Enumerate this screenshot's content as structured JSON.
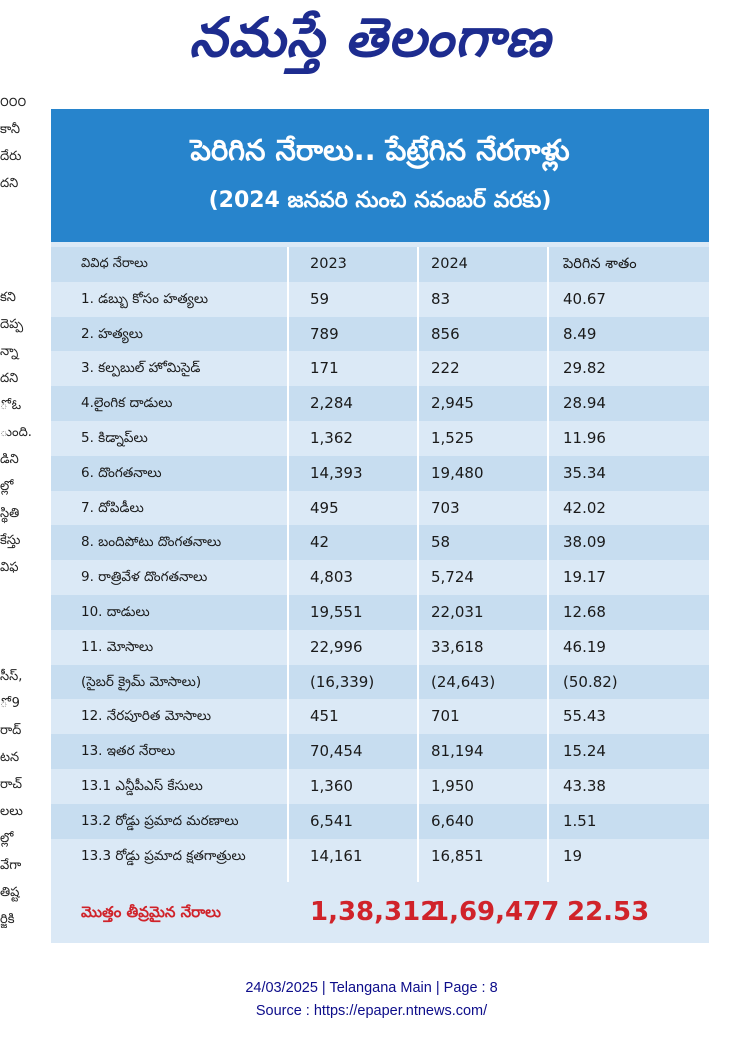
{
  "masthead": "నమస్తే తెలంగాణ",
  "edge_text": [
    "౦౦౦",
    "కానీ",
    "దేరు",
    "దని",
    "కని",
    "దెప్ప",
    "న్నా",
    "దని",
    "ో ఓ",
    "ుంది.",
    "డిని",
    "ల్లో",
    "స్థితి",
    "కేస్తు",
    "విఫ",
    "సీస్,",
    "ో 9",
    "రాద్",
    "టన",
    "రాచ్",
    "లలు",
    "ల్లో",
    "వేగా",
    "తిష్ట",
    "ర్జికి"
  ],
  "banner": {
    "title": "పెరిగిన నేరాలు.. పేట్రేగిన నేరగాళ్లు",
    "subtitle": "(2024 జనవరి నుంచి నవంబర్ వరకు)"
  },
  "table": {
    "headers": [
      "వివిధ నేరాలు",
      "2023",
      "2024",
      "పెరిగిన శాతం"
    ],
    "rows": [
      [
        "1. డబ్బు కోసం హత్యలు",
        "59",
        "83",
        "40.67"
      ],
      [
        "2. హత్యలు",
        "789",
        "856",
        "8.49"
      ],
      [
        "3. కల్పబుల్ హోమిసైడ్",
        "171",
        "222",
        "29.82"
      ],
      [
        "4.లైంగిక దాడులు",
        "2,284",
        "2,945",
        "28.94"
      ],
      [
        "5. కిడ్నాప్‌లు",
        "1,362",
        "1,525",
        "11.96"
      ],
      [
        "6. దొంగతనాలు",
        "14,393",
        "19,480",
        "35.34"
      ],
      [
        "7. దోపిడీలు",
        "495",
        "703",
        "42.02"
      ],
      [
        "8. బందిపోటు దొంగతనాలు",
        "42",
        "58",
        "38.09"
      ],
      [
        "9. రాత్రివేళ దొంగతనాలు",
        "4,803",
        "5,724",
        "19.17"
      ],
      [
        "10. దాడులు",
        "19,551",
        "22,031",
        "12.68"
      ],
      [
        "11. మోసాలు",
        "22,996",
        "33,618",
        "46.19"
      ],
      [
        "(సైబర్ క్రైమ్ మోసాలు)",
        "(16,339)",
        "(24,643)",
        "(50.82)"
      ],
      [
        "12. నేరపూరిత మోసాలు",
        "451",
        "701",
        "55.43"
      ],
      [
        "13. ఇతర నేరాలు",
        "70,454",
        "81,194",
        "15.24"
      ],
      [
        "13.1 ఎన్డీపీఎస్ కేసులు",
        "1,360",
        "1,950",
        "43.38"
      ],
      [
        "13.2 రోడ్డు ప్రమాద మరణాలు",
        "6,541",
        "6,640",
        "1.51"
      ],
      [
        "13.3 రోడ్డు ప్రమాద క్షతగాత్రులు",
        "14,161",
        "16,851",
        "19"
      ]
    ],
    "total": {
      "label": "మొత్తం తీవ్రమైన నేరాలు",
      "v2023": "1,38,312",
      "v2024": "1,69,477",
      "pct": "22.53"
    }
  },
  "footer": {
    "line1": "24/03/2025 | Telangana Main | Page : 8",
    "line2": "Source : https://epaper.ntnews.com/"
  },
  "colors": {
    "masthead": "#1d2c8f",
    "banner": "#2784cc",
    "table_light": "#dbe9f6",
    "table_alt": "#c7ddf0",
    "total_text": "#d0232a",
    "footer_text": "#0d0d8a"
  }
}
